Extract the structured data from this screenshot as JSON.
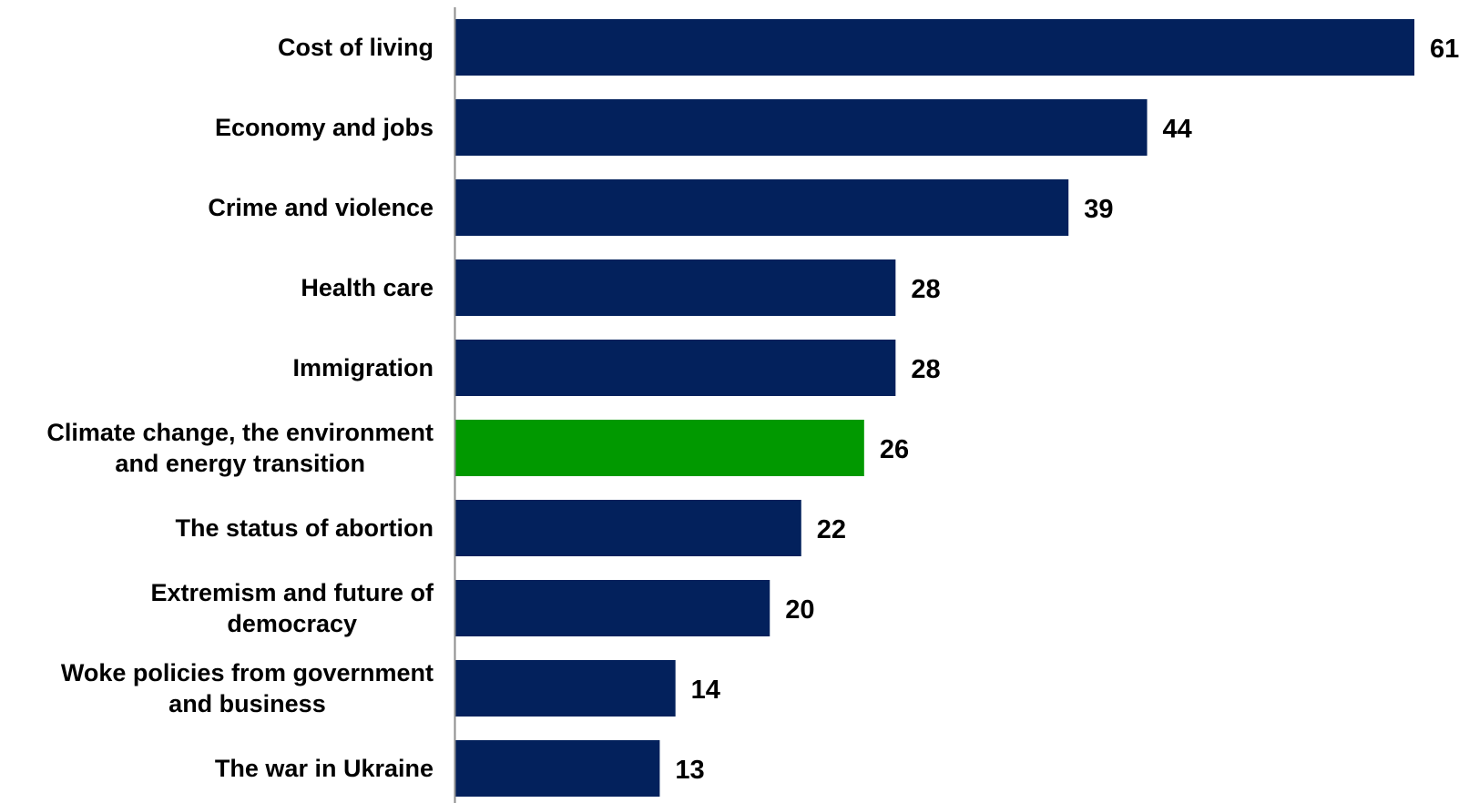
{
  "chart_data": {
    "type": "bar",
    "orientation": "horizontal",
    "categories": [
      [
        "Cost of living"
      ],
      [
        "Economy and jobs"
      ],
      [
        "Crime and violence"
      ],
      [
        "Health care"
      ],
      [
        "Immigration"
      ],
      [
        "Climate change, the environment",
        "and energy transition"
      ],
      [
        "The status of abortion"
      ],
      [
        "Extremism and future of",
        "democracy"
      ],
      [
        "Woke policies from government",
        "and business"
      ],
      [
        "The war in Ukraine"
      ]
    ],
    "values": [
      61,
      44,
      39,
      28,
      28,
      26,
      22,
      20,
      14,
      13
    ],
    "value_labels": [
      "61",
      "44",
      "39",
      "28",
      "28",
      "26",
      "22",
      "20",
      "14",
      "13"
    ],
    "highlight_index": 5,
    "colors": {
      "bar": "#03215C",
      "highlight": "#019900",
      "axis": "#8C8C8C",
      "text": "#000000"
    },
    "xlim": [
      0,
      61
    ],
    "grid": false,
    "legend": "none",
    "title": "",
    "xlabel": "",
    "ylabel": ""
  }
}
